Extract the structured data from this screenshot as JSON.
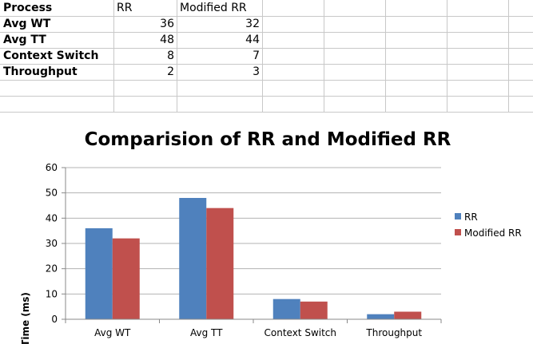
{
  "table": {
    "headers": [
      "Process",
      "RR",
      "Modified RR"
    ],
    "rows": [
      {
        "label": "Avg WT",
        "rr": "36",
        "mrr": "32"
      },
      {
        "label": "Avg TT",
        "rr": "48",
        "mrr": "44"
      },
      {
        "label": "Context Switch",
        "rr": "8",
        "mrr": "7"
      },
      {
        "label": "Throughput",
        "rr": "2",
        "mrr": "3"
      }
    ]
  },
  "colors": {
    "rr": "#4f81bd",
    "mrr": "#c0504d",
    "grid": "#b3b3b3"
  },
  "chart_data": {
    "type": "bar",
    "title": "Comparision of RR and Modified RR",
    "xlabel": "",
    "ylabel": "Time (ms)",
    "categories": [
      "Avg WT",
      "Avg TT",
      "Context Switch",
      "Throughput"
    ],
    "series": [
      {
        "name": "RR",
        "values": [
          36,
          48,
          8,
          2
        ]
      },
      {
        "name": "Modified RR",
        "values": [
          32,
          44,
          7,
          3
        ]
      }
    ],
    "ylim": [
      0,
      60
    ],
    "yticks": [
      "0",
      "10",
      "20",
      "30",
      "40",
      "50",
      "60"
    ],
    "grid": true,
    "legend": "right"
  }
}
